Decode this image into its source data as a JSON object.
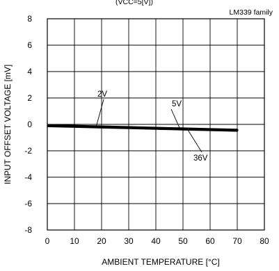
{
  "chart_data": {
    "type": "line",
    "title": "(VCC=5[V])",
    "family_label": "LM339 family",
    "xlabel": "AMBIENT TEMPERATURE [°C]",
    "ylabel": "INPUT OFFSET VOLTAGE [mV]",
    "xlim": [
      0,
      80
    ],
    "ylim": [
      -8,
      8
    ],
    "x_ticks": [
      "0",
      "10",
      "20",
      "30",
      "40",
      "50",
      "60",
      "70",
      "80"
    ],
    "y_ticks": [
      "8",
      "6",
      "4",
      "2",
      "0",
      "-2",
      "-4",
      "-6",
      "-8"
    ],
    "grid": true,
    "series": [
      {
        "name": "2V",
        "x": [
          -5,
          0,
          10,
          20,
          30,
          40,
          50,
          60,
          70
        ],
        "y": [
          0.0,
          -0.1,
          -0.15,
          -0.2,
          -0.25,
          -0.3,
          -0.35,
          -0.4,
          -0.45
        ]
      },
      {
        "name": "5V",
        "x": [
          -5,
          0,
          10,
          20,
          30,
          40,
          50,
          60,
          70
        ],
        "y": [
          0.0,
          -0.1,
          -0.15,
          -0.2,
          -0.25,
          -0.3,
          -0.35,
          -0.4,
          -0.45
        ]
      },
      {
        "name": "36V",
        "x": [
          -5,
          0,
          10,
          20,
          30,
          40,
          50,
          60,
          70
        ],
        "y": [
          0.0,
          -0.1,
          -0.15,
          -0.2,
          -0.25,
          -0.3,
          -0.35,
          -0.4,
          -0.45
        ]
      }
    ]
  }
}
